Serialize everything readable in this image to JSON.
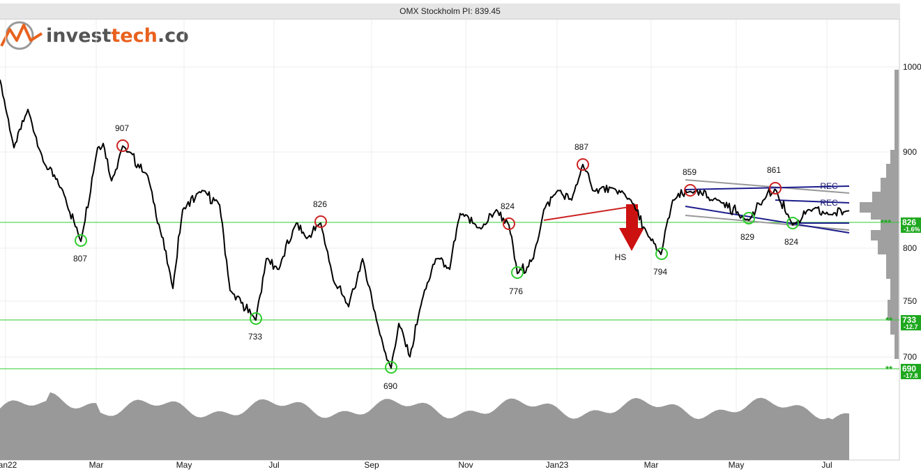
{
  "title": "OMX Stockholm PI: 839.45",
  "logo": {
    "text_a": "invest",
    "text_b": "tech",
    "text_c": ".com"
  },
  "colors": {
    "price": "#000000",
    "support": "#2ecc2e",
    "resistance": "#cc2222",
    "trend": "#1c1c8c",
    "channel": "#999999",
    "volume": "#999999",
    "badge": "#1fa81f",
    "arrow": "#cc1111"
  },
  "chart_data": {
    "type": "line",
    "title": "OMX Stockholm PI: 839.45",
    "ylim": [
      690,
      1000
    ],
    "y_ticks": [
      1000,
      900,
      800,
      750,
      700
    ],
    "x_ticks": [
      "Jan22",
      "Mar",
      "May",
      "Jul",
      "Sep",
      "Nov",
      "Jan23",
      "Mar",
      "May",
      "Jul"
    ],
    "series": [
      {
        "x": [
          "Jan22",
          "Feb",
          "Feb",
          "Mar",
          "Mar",
          "Apr",
          "Apr",
          "May",
          "May",
          "Jun",
          "Jun",
          "Jul",
          "Jul",
          "Aug",
          "Aug",
          "Sep",
          "Sep",
          "Oct",
          "Oct",
          "Nov",
          "Nov",
          "Dec",
          "Dec",
          "Jan23",
          "Jan23",
          "Feb",
          "Feb",
          "Mar",
          "Mar",
          "Apr",
          "Apr",
          "May",
          "May",
          "Jun",
          "Jun",
          "Jul",
          "Jul"
        ],
        "values": [
          985,
          950,
          905,
          807,
          870,
          907,
          880,
          870,
          790,
          840,
          875,
          780,
          733,
          790,
          826,
          760,
          735,
          690,
          735,
          780,
          840,
          824,
          776,
          840,
          887,
          860,
          855,
          794,
          850,
          840,
          861,
          829,
          845,
          824,
          840,
          835,
          839
        ]
      }
    ],
    "points": [
      {
        "label": "907",
        "kind": "top"
      },
      {
        "label": "807",
        "kind": "bottom"
      },
      {
        "label": "733",
        "kind": "bottom"
      },
      {
        "label": "826",
        "kind": "top"
      },
      {
        "label": "690",
        "kind": "bottom"
      },
      {
        "label": "824",
        "kind": "top"
      },
      {
        "label": "776",
        "kind": "bottom"
      },
      {
        "label": "887",
        "kind": "top"
      },
      {
        "label": "794",
        "kind": "bottom"
      },
      {
        "label": "859",
        "kind": "top"
      },
      {
        "label": "829",
        "kind": "bottom"
      },
      {
        "label": "861",
        "kind": "top"
      },
      {
        "label": "824",
        "kind": "bottom"
      }
    ],
    "pattern_labels": [
      "HS",
      "REC",
      "REC"
    ],
    "levels": [
      {
        "value": "826",
        "change": "-1.6%",
        "stars": "***"
      },
      {
        "value": "733",
        "change": "-12.7",
        "stars": "**"
      },
      {
        "value": "690",
        "change": "-17.8",
        "stars": "**"
      }
    ]
  }
}
